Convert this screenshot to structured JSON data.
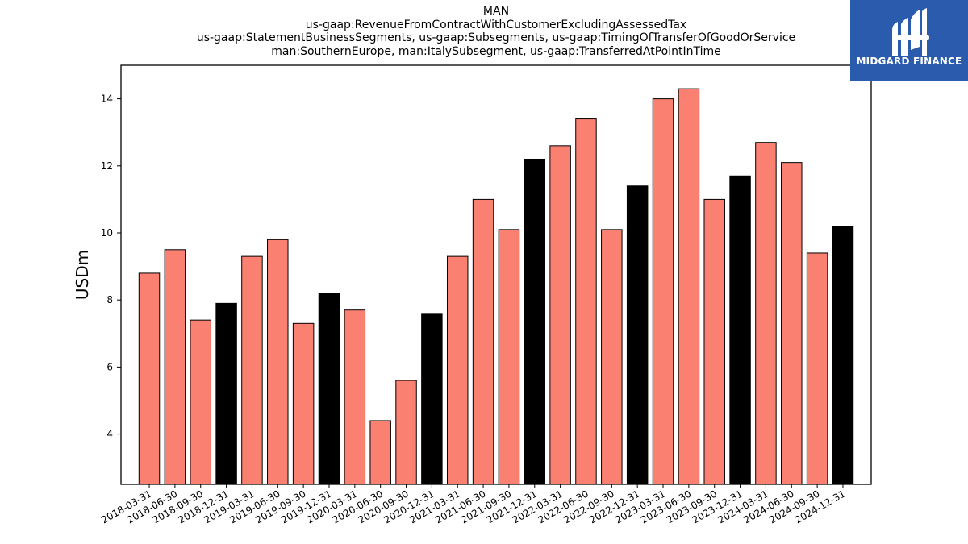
{
  "title_lines": [
    "MAN",
    "us-gaap:RevenueFromContractWithCustomerExcludingAssessedTax",
    "us-gaap:StatementBusinessSegments, us-gaap:Subsegments, us-gaap:TimingOfTransferOfGoodOrService",
    "man:SouthernEurope, man:ItalySubsegment, us-gaap:TransferredAtPointInTime"
  ],
  "logo": {
    "text": "MIDGARD FINANCE",
    "background": "#2a5bad",
    "icon": "midgard-logo-icon"
  },
  "colors": {
    "quarter_bar": "#fa8072",
    "year_end_bar": "#000000"
  },
  "chart_data": {
    "type": "bar",
    "ylabel": "USDm",
    "xlabel": "",
    "ylim": [
      2.5,
      15.0
    ],
    "yticks": [
      4,
      6,
      8,
      10,
      12,
      14
    ],
    "grid": false,
    "categories": [
      "2018-03-31",
      "2018-06-30",
      "2018-09-30",
      "2018-12-31",
      "2019-03-31",
      "2019-06-30",
      "2019-09-30",
      "2019-12-31",
      "2020-03-31",
      "2020-06-30",
      "2020-09-30",
      "2020-12-31",
      "2021-03-31",
      "2021-06-30",
      "2021-09-30",
      "2021-12-31",
      "2022-03-31",
      "2022-06-30",
      "2022-09-30",
      "2022-12-31",
      "2023-03-31",
      "2023-06-30",
      "2023-09-30",
      "2023-12-31",
      "2024-03-31",
      "2024-06-30",
      "2024-09-30",
      "2024-12-31"
    ],
    "values": [
      8.8,
      9.5,
      7.4,
      7.9,
      9.3,
      9.8,
      7.3,
      8.2,
      7.7,
      4.4,
      5.6,
      7.6,
      9.3,
      11.0,
      10.1,
      12.2,
      12.6,
      13.4,
      10.1,
      11.4,
      14.0,
      14.3,
      11.0,
      11.7,
      12.7,
      12.1,
      9.4,
      10.2
    ]
  }
}
